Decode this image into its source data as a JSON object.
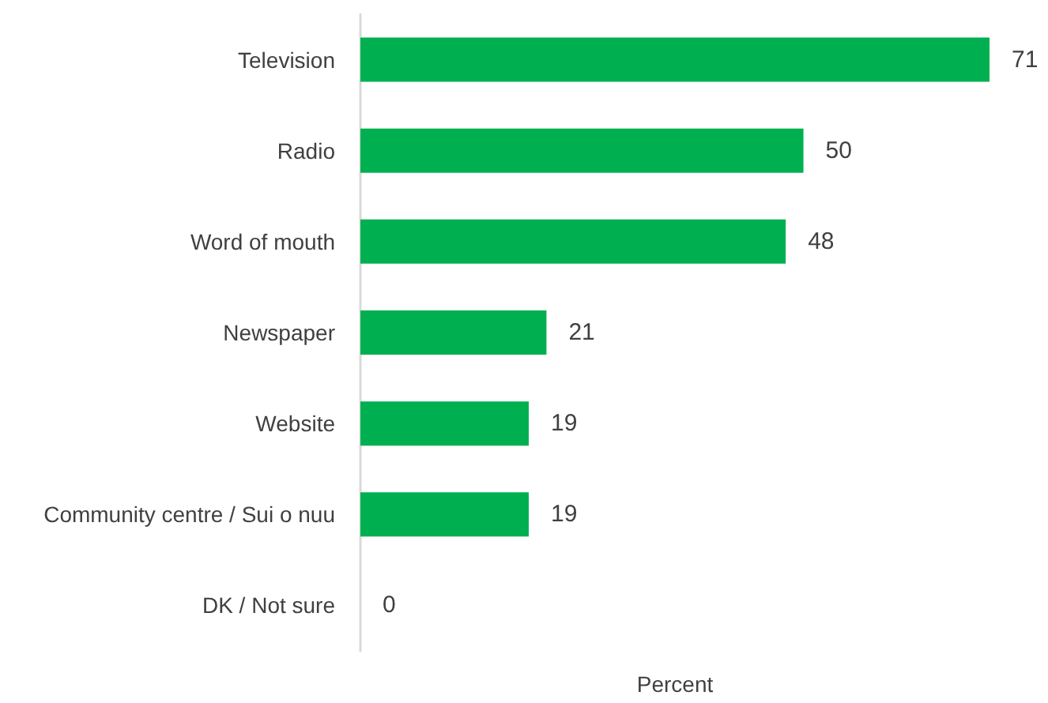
{
  "chart_data": {
    "type": "bar",
    "orientation": "horizontal",
    "categories": [
      "Television",
      "Radio",
      "Word of mouth",
      "Newspaper",
      "Website",
      "Community centre / Sui o nuu",
      "DK / Not sure"
    ],
    "values": [
      71,
      50,
      48,
      21,
      19,
      19,
      0
    ],
    "color": "#00b050",
    "data_labels": true,
    "xlabel": "Percent",
    "tick_labels": "y"
  }
}
